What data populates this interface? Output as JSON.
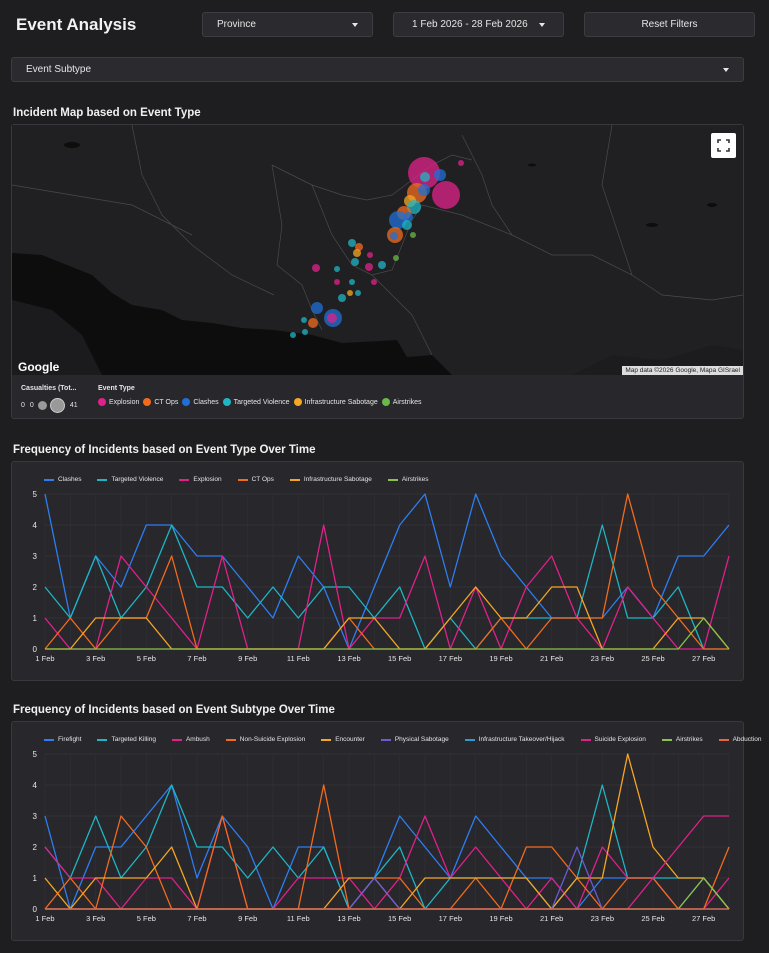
{
  "header": {
    "title": "Event Analysis",
    "province_label": "Province",
    "date_range_label": "1 Feb 2026 - 28 Feb 2026",
    "reset_label": "Reset Filters",
    "subtype_label": "Event Subtype"
  },
  "map": {
    "title": "Incident Map based on Event Type",
    "google_label": "Google",
    "attribution": "Map data ©2026 Google, Mapa GISrael",
    "casualties_legend_title": "Casualties (Tot...",
    "casualties_min": "0",
    "casualties_zero": "0",
    "casualties_max": "41",
    "event_type_legend_title": "Event Type",
    "event_types": [
      {
        "name": "Explosion",
        "color": "#e0218a"
      },
      {
        "name": "CT Ops",
        "color": "#f26b1d"
      },
      {
        "name": "Clashes",
        "color": "#1f6fd6"
      },
      {
        "name": "Targeted Violence",
        "color": "#1fb5c4"
      },
      {
        "name": "Infrastructure Sabotage",
        "color": "#f5a623"
      },
      {
        "name": "Airstrikes",
        "color": "#6bb84a"
      }
    ]
  },
  "chart_data": [
    {
      "type": "line",
      "title": "Frequency of Incidents based on Event Type Over Time",
      "x_ticks": [
        "1 Feb",
        "3 Feb",
        "5 Feb",
        "7 Feb",
        "9 Feb",
        "11 Feb",
        "13 Feb",
        "15 Feb",
        "17 Feb",
        "19 Feb",
        "21 Feb",
        "23 Feb",
        "25 Feb",
        "27 Feb"
      ],
      "x": [
        "1 Feb",
        "2 Feb",
        "3 Feb",
        "4 Feb",
        "5 Feb",
        "6 Feb",
        "7 Feb",
        "8 Feb",
        "9 Feb",
        "10 Feb",
        "11 Feb",
        "12 Feb",
        "13 Feb",
        "14 Feb",
        "15 Feb",
        "16 Feb",
        "17 Feb",
        "18 Feb",
        "19 Feb",
        "20 Feb",
        "21 Feb",
        "22 Feb",
        "23 Feb",
        "24 Feb",
        "25 Feb",
        "26 Feb",
        "27 Feb",
        "28 Feb"
      ],
      "ylim": [
        0,
        5
      ],
      "y_ticks": [
        "0",
        "1",
        "2",
        "3",
        "4",
        "5"
      ],
      "grid": true,
      "legend_position": "top-left",
      "series": [
        {
          "name": "Clashes",
          "color": "#2e7ef0",
          "values": [
            5,
            1,
            3,
            2,
            4,
            4,
            3,
            3,
            2,
            1,
            3,
            2,
            0,
            2,
            4,
            5,
            2,
            5,
            3,
            2,
            1,
            1,
            1,
            2,
            1,
            3,
            3,
            4
          ]
        },
        {
          "name": "Targeted Violence",
          "color": "#1fb5c4",
          "values": [
            2,
            1,
            3,
            1,
            2,
            4,
            2,
            2,
            1,
            2,
            1,
            2,
            2,
            1,
            2,
            0,
            1,
            0,
            1,
            1,
            1,
            1,
            4,
            1,
            1,
            2,
            0,
            0
          ]
        },
        {
          "name": "Explosion",
          "color": "#e0218a",
          "values": [
            1,
            0,
            0,
            3,
            2,
            1,
            0,
            3,
            0,
            0,
            0,
            4,
            0,
            1,
            1,
            3,
            0,
            2,
            0,
            2,
            3,
            1,
            0,
            2,
            1,
            0,
            0,
            3
          ]
        },
        {
          "name": "CT Ops",
          "color": "#f26b1d",
          "values": [
            0,
            1,
            0,
            1,
            1,
            3,
            0,
            0,
            0,
            0,
            0,
            0,
            1,
            0,
            0,
            0,
            0,
            0,
            1,
            0,
            1,
            1,
            1,
            5,
            2,
            1,
            0,
            0
          ]
        },
        {
          "name": "Infrastructure Sabotage",
          "color": "#f5a623",
          "values": [
            0,
            0,
            1,
            1,
            1,
            0,
            0,
            0,
            0,
            0,
            0,
            0,
            1,
            1,
            0,
            0,
            1,
            2,
            1,
            1,
            2,
            2,
            0,
            0,
            0,
            1,
            1,
            0
          ]
        },
        {
          "name": "Airstrikes",
          "color": "#8ac24a",
          "values": [
            0,
            0,
            0,
            0,
            0,
            0,
            0,
            0,
            0,
            0,
            0,
            0,
            0,
            0,
            0,
            0,
            0,
            0,
            0,
            0,
            0,
            0,
            0,
            0,
            0,
            0,
            1,
            0
          ]
        }
      ]
    },
    {
      "type": "line",
      "title": "Frequency of Incidents based on Event Subtype Over Time",
      "x_ticks": [
        "1 Feb",
        "3 Feb",
        "5 Feb",
        "7 Feb",
        "9 Feb",
        "11 Feb",
        "13 Feb",
        "15 Feb",
        "17 Feb",
        "19 Feb",
        "21 Feb",
        "23 Feb",
        "25 Feb",
        "27 Feb"
      ],
      "x": [
        "1 Feb",
        "2 Feb",
        "3 Feb",
        "4 Feb",
        "5 Feb",
        "6 Feb",
        "7 Feb",
        "8 Feb",
        "9 Feb",
        "10 Feb",
        "11 Feb",
        "12 Feb",
        "13 Feb",
        "14 Feb",
        "15 Feb",
        "16 Feb",
        "17 Feb",
        "18 Feb",
        "19 Feb",
        "20 Feb",
        "21 Feb",
        "22 Feb",
        "23 Feb",
        "24 Feb",
        "25 Feb",
        "26 Feb",
        "27 Feb",
        "28 Feb"
      ],
      "ylim": [
        0,
        5
      ],
      "y_ticks": [
        "0",
        "1",
        "2",
        "3",
        "4",
        "5"
      ],
      "grid": true,
      "legend_position": "top-left",
      "series": [
        {
          "name": "Firefight",
          "color": "#2e7ef0",
          "values": [
            3,
            0,
            2,
            2,
            3,
            4,
            1,
            3,
            2,
            0,
            2,
            2,
            0,
            1,
            3,
            2,
            1,
            3,
            2,
            1,
            1,
            0,
            1,
            1,
            1,
            0,
            1,
            0
          ]
        },
        {
          "name": "Targeted Killing",
          "color": "#1fb5c4",
          "values": [
            2,
            1,
            3,
            1,
            2,
            4,
            2,
            2,
            1,
            2,
            1,
            2,
            0,
            1,
            2,
            0,
            1,
            1,
            1,
            1,
            0,
            1,
            4,
            1,
            1,
            1,
            1,
            0
          ]
        },
        {
          "name": "Ambush",
          "color": "#e0218a",
          "values": [
            2,
            1,
            1,
            0,
            1,
            1,
            0,
            3,
            0,
            0,
            1,
            1,
            1,
            0,
            1,
            3,
            1,
            2,
            1,
            0,
            1,
            0,
            2,
            1,
            1,
            0,
            0,
            1
          ]
        },
        {
          "name": "Non-Suicide Explosion",
          "color": "#f26b1d",
          "values": [
            0,
            1,
            0,
            3,
            2,
            0,
            0,
            3,
            0,
            0,
            0,
            4,
            0,
            1,
            1,
            0,
            0,
            1,
            0,
            2,
            2,
            1,
            0,
            1,
            1,
            0,
            0,
            2
          ]
        },
        {
          "name": "Encounter",
          "color": "#f5a623",
          "values": [
            1,
            0,
            1,
            1,
            1,
            2,
            0,
            0,
            0,
            0,
            0,
            0,
            1,
            1,
            0,
            1,
            1,
            1,
            1,
            1,
            0,
            1,
            1,
            5,
            2,
            1,
            1,
            0
          ]
        },
        {
          "name": "Physical Sabotage",
          "color": "#6a5bd6",
          "values": [
            0,
            0,
            0,
            0,
            0,
            0,
            0,
            0,
            0,
            0,
            0,
            0,
            0,
            1,
            0,
            0,
            0,
            0,
            0,
            0,
            0,
            2,
            0,
            0,
            0,
            0,
            0,
            0
          ]
        },
        {
          "name": "Infrastructure Takeover/Hijack",
          "color": "#2e9ad0",
          "values": [
            0,
            0,
            0,
            0,
            0,
            0,
            0,
            0,
            0,
            0,
            0,
            0,
            0,
            0,
            0,
            0,
            0,
            0,
            0,
            0,
            0,
            0,
            0,
            0,
            0,
            0,
            0,
            0
          ]
        },
        {
          "name": "Suicide Explosion",
          "color": "#e0218a",
          "values": [
            0,
            0,
            0,
            0,
            0,
            0,
            0,
            0,
            0,
            0,
            0,
            0,
            0,
            0,
            0,
            0,
            0,
            0,
            0,
            0,
            0,
            0,
            0,
            0,
            1,
            2,
            3,
            3
          ]
        },
        {
          "name": "Airstrikes",
          "color": "#8ac24a",
          "values": [
            0,
            0,
            0,
            0,
            0,
            0,
            0,
            0,
            0,
            0,
            0,
            0,
            0,
            0,
            0,
            0,
            0,
            0,
            0,
            0,
            0,
            0,
            0,
            0,
            0,
            0,
            1,
            0
          ]
        },
        {
          "name": "Abduction",
          "color": "#e8663d",
          "values": [
            0,
            0,
            0,
            0,
            0,
            0,
            0,
            0,
            0,
            0,
            0,
            0,
            0,
            0,
            0,
            0,
            0,
            0,
            0,
            0,
            0,
            0,
            0,
            0,
            0,
            0,
            0,
            0
          ]
        }
      ]
    }
  ]
}
